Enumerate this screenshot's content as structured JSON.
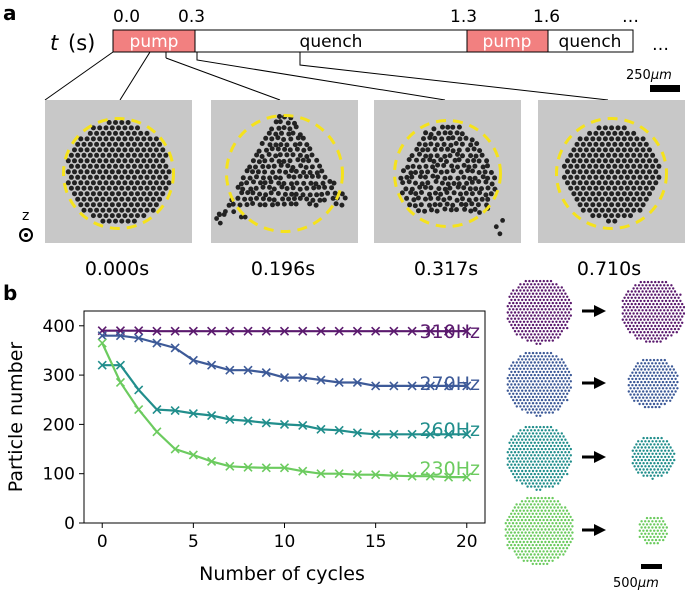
{
  "panel_a": {
    "label": "a",
    "t_symbol": "t",
    "t_unit": "(s)",
    "tick_labels": [
      "0.0",
      "0.3",
      "1.3",
      "1.6"
    ],
    "ellipsis": "…",
    "segments": [
      "pump",
      "quench",
      "pump",
      "quench"
    ],
    "scale_bar": "250",
    "scale_unit": "μm",
    "axis_symbol": "z",
    "snapshots": [
      "0.000s",
      "0.196s",
      "0.317s",
      "0.710s"
    ],
    "colors": {
      "pump": "#f28080",
      "ring": "#f5e21c",
      "particle": "#222222",
      "background": "#c8c8c8"
    }
  },
  "panel_b": {
    "label": "b",
    "scale_bar": "500",
    "scale_unit": "μm",
    "arrow": "arrow-right"
  },
  "chart_data": {
    "type": "line",
    "xlabel": "Number of cycles",
    "ylabel": "Particle number",
    "xlim": [
      -1,
      21
    ],
    "ylim": [
      0,
      430
    ],
    "xticks": [
      0,
      5,
      10,
      15,
      20
    ],
    "yticks": [
      0,
      100,
      200,
      300,
      400
    ],
    "grid": false,
    "x": [
      0,
      1,
      2,
      3,
      4,
      5,
      6,
      7,
      8,
      9,
      10,
      11,
      12,
      13,
      14,
      15,
      16,
      17,
      18,
      19,
      20
    ],
    "series": [
      {
        "name": "310Hz",
        "color": "#5b1a6e",
        "values": [
          390,
          390,
          390,
          389,
          389,
          389,
          389,
          389,
          389,
          389,
          389,
          389,
          389,
          389,
          389,
          389,
          389,
          389,
          389,
          389,
          389
        ]
      },
      {
        "name": "270Hz",
        "color": "#3d5a98",
        "values": [
          380,
          380,
          375,
          365,
          355,
          330,
          320,
          310,
          310,
          305,
          295,
          295,
          290,
          285,
          285,
          278,
          278,
          278,
          278,
          278,
          278
        ]
      },
      {
        "name": "260Hz",
        "color": "#218e8c",
        "values": [
          320,
          320,
          270,
          230,
          228,
          222,
          218,
          210,
          207,
          203,
          200,
          198,
          190,
          188,
          183,
          180,
          180,
          180,
          180,
          180,
          180
        ]
      },
      {
        "name": "230Hz",
        "color": "#6ccb5f",
        "values": [
          365,
          285,
          230,
          185,
          150,
          138,
          125,
          115,
          113,
          112,
          112,
          105,
          100,
          100,
          98,
          98,
          96,
          95,
          95,
          93,
          93
        ]
      }
    ]
  }
}
